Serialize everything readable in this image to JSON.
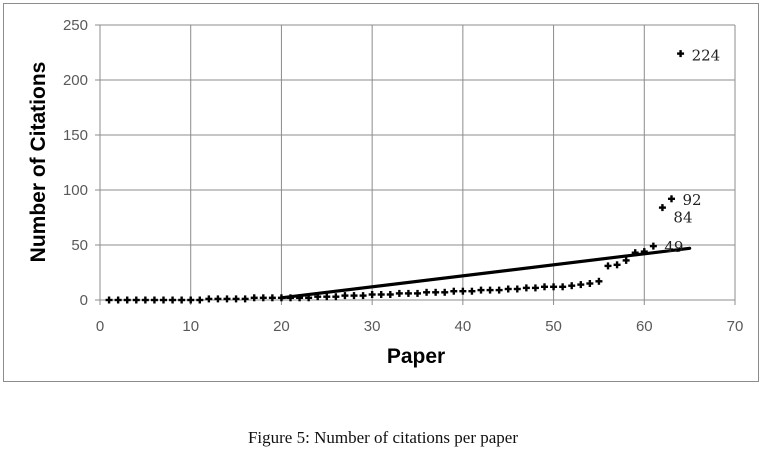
{
  "caption": "Figure 5: Number of citations per paper",
  "chart_data": {
    "type": "scatter",
    "title": "",
    "xlabel": "Paper",
    "ylabel": "Number of Citations",
    "xlim": [
      0,
      70
    ],
    "ylim": [
      0,
      250
    ],
    "xticks": [
      0,
      10,
      20,
      30,
      40,
      50,
      60,
      70
    ],
    "yticks": [
      0,
      50,
      100,
      150,
      200,
      250
    ],
    "grid": true,
    "legend": "none",
    "marker_color": "#000000",
    "points": {
      "x": [
        1,
        2,
        3,
        4,
        5,
        6,
        7,
        8,
        9,
        10,
        11,
        12,
        13,
        14,
        15,
        16,
        17,
        18,
        19,
        20,
        21,
        22,
        23,
        24,
        25,
        26,
        27,
        28,
        29,
        30,
        31,
        32,
        33,
        34,
        35,
        36,
        37,
        38,
        39,
        40,
        41,
        42,
        43,
        44,
        45,
        46,
        47,
        48,
        49,
        50,
        51,
        52,
        53,
        54,
        55,
        56,
        57,
        58,
        59,
        60,
        61,
        62,
        63,
        64
      ],
      "y": [
        0,
        0,
        0,
        0,
        0,
        0,
        0,
        0,
        0,
        0,
        0,
        1,
        1,
        1,
        1,
        1,
        2,
        2,
        2,
        2,
        2,
        2,
        2,
        3,
        3,
        3,
        4,
        4,
        4,
        5,
        5,
        5,
        6,
        6,
        6,
        7,
        7,
        7,
        8,
        8,
        8,
        9,
        9,
        9,
        10,
        10,
        11,
        11,
        12,
        12,
        12,
        13,
        14,
        15,
        17,
        31,
        32,
        36,
        43,
        44,
        49,
        84,
        92,
        224
      ]
    },
    "data_labels": [
      {
        "x": 61,
        "y": 49,
        "text": "49"
      },
      {
        "x": 62,
        "y": 84,
        "text": "84"
      },
      {
        "x": 63,
        "y": 92,
        "text": "92"
      },
      {
        "x": 64,
        "y": 224,
        "text": "224"
      }
    ],
    "trendline": {
      "x": [
        20,
        65
      ],
      "y": [
        2,
        47
      ]
    }
  }
}
